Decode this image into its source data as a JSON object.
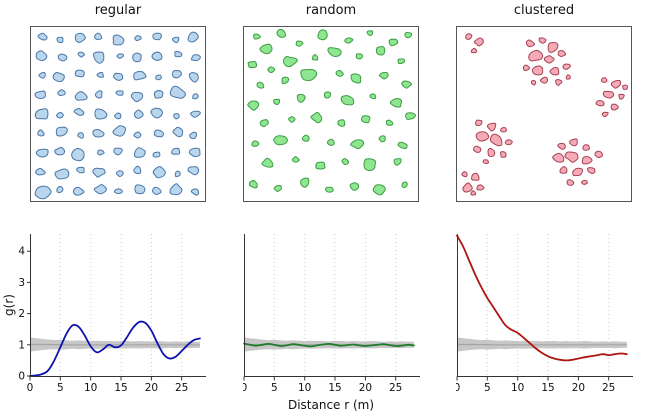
{
  "figure": {
    "titles": [
      "regular",
      "random",
      "clustered"
    ],
    "xlabel": "Distance r (m)",
    "ylabel": "g(r)",
    "colors": {
      "pattern_fill": [
        "#b9d6ec",
        "#8fe690",
        "#f5abb6"
      ],
      "pattern_stroke": [
        "#4a76a8",
        "#3b9c44",
        "#a64254"
      ],
      "line": [
        "#0b12ad",
        "#1e7d29",
        "#ad1412"
      ],
      "envelope_fill": "#c7c7c7",
      "envelope_line": "#a5a5a5",
      "grid": "#cccccc",
      "axis": "#333333",
      "panel_border": "#555555"
    }
  },
  "chart_data": [
    {
      "type": "scatter",
      "panel": "regular",
      "marker": "blob",
      "points": [
        [
          0.07,
          0.06,
          4
        ],
        [
          0.17,
          0.08,
          3
        ],
        [
          0.28,
          0.07,
          5
        ],
        [
          0.39,
          0.06,
          3.5
        ],
        [
          0.5,
          0.08,
          5.5
        ],
        [
          0.61,
          0.07,
          3
        ],
        [
          0.72,
          0.06,
          4
        ],
        [
          0.83,
          0.08,
          3
        ],
        [
          0.93,
          0.06,
          6
        ],
        [
          0.06,
          0.17,
          5
        ],
        [
          0.18,
          0.18,
          4
        ],
        [
          0.29,
          0.16,
          3
        ],
        [
          0.39,
          0.18,
          6
        ],
        [
          0.51,
          0.17,
          3
        ],
        [
          0.61,
          0.18,
          4.5
        ],
        [
          0.72,
          0.17,
          5
        ],
        [
          0.84,
          0.16,
          3.5
        ],
        [
          0.94,
          0.18,
          4
        ],
        [
          0.07,
          0.28,
          3
        ],
        [
          0.17,
          0.29,
          5.5
        ],
        [
          0.28,
          0.27,
          4
        ],
        [
          0.4,
          0.28,
          3
        ],
        [
          0.5,
          0.29,
          4
        ],
        [
          0.62,
          0.28,
          6
        ],
        [
          0.73,
          0.29,
          3
        ],
        [
          0.83,
          0.27,
          4.5
        ],
        [
          0.93,
          0.29,
          5
        ],
        [
          0.06,
          0.39,
          4.5
        ],
        [
          0.18,
          0.38,
          3
        ],
        [
          0.29,
          0.4,
          5
        ],
        [
          0.39,
          0.39,
          4
        ],
        [
          0.51,
          0.38,
          3
        ],
        [
          0.61,
          0.4,
          5
        ],
        [
          0.73,
          0.39,
          4
        ],
        [
          0.84,
          0.38,
          6.5
        ],
        [
          0.94,
          0.4,
          3
        ],
        [
          0.07,
          0.5,
          6
        ],
        [
          0.17,
          0.51,
          3.5
        ],
        [
          0.28,
          0.49,
          4
        ],
        [
          0.4,
          0.5,
          5.5
        ],
        [
          0.5,
          0.51,
          3
        ],
        [
          0.62,
          0.5,
          4
        ],
        [
          0.72,
          0.49,
          5.5
        ],
        [
          0.83,
          0.51,
          3
        ],
        [
          0.94,
          0.5,
          4
        ],
        [
          0.06,
          0.61,
          3.5
        ],
        [
          0.18,
          0.6,
          5
        ],
        [
          0.29,
          0.62,
          3
        ],
        [
          0.39,
          0.61,
          4.5
        ],
        [
          0.51,
          0.6,
          6
        ],
        [
          0.61,
          0.62,
          3
        ],
        [
          0.73,
          0.61,
          4
        ],
        [
          0.84,
          0.6,
          5
        ],
        [
          0.93,
          0.62,
          3.5
        ],
        [
          0.07,
          0.72,
          5
        ],
        [
          0.17,
          0.71,
          4
        ],
        [
          0.28,
          0.73,
          6
        ],
        [
          0.4,
          0.72,
          3
        ],
        [
          0.5,
          0.71,
          4.5
        ],
        [
          0.62,
          0.72,
          5
        ],
        [
          0.72,
          0.73,
          3
        ],
        [
          0.83,
          0.71,
          4
        ],
        [
          0.94,
          0.72,
          5.5
        ],
        [
          0.06,
          0.83,
          4
        ],
        [
          0.18,
          0.84,
          6
        ],
        [
          0.29,
          0.82,
          3.5
        ],
        [
          0.39,
          0.83,
          5
        ],
        [
          0.51,
          0.84,
          3
        ],
        [
          0.61,
          0.82,
          4
        ],
        [
          0.73,
          0.83,
          5.5
        ],
        [
          0.84,
          0.84,
          3
        ],
        [
          0.93,
          0.82,
          4.5
        ],
        [
          0.07,
          0.94,
          7
        ],
        [
          0.17,
          0.93,
          3
        ],
        [
          0.28,
          0.94,
          4.5
        ],
        [
          0.4,
          0.93,
          5
        ],
        [
          0.5,
          0.94,
          3.5
        ],
        [
          0.62,
          0.93,
          5
        ],
        [
          0.72,
          0.94,
          4
        ],
        [
          0.83,
          0.93,
          6
        ],
        [
          0.94,
          0.94,
          3.5
        ]
      ]
    },
    {
      "type": "scatter",
      "panel": "random",
      "marker": "blob",
      "points": [
        [
          0.08,
          0.06,
          3
        ],
        [
          0.22,
          0.04,
          4
        ],
        [
          0.13,
          0.13,
          6
        ],
        [
          0.32,
          0.1,
          3
        ],
        [
          0.45,
          0.05,
          5
        ],
        [
          0.6,
          0.08,
          3.5
        ],
        [
          0.72,
          0.04,
          3
        ],
        [
          0.85,
          0.09,
          4
        ],
        [
          0.94,
          0.05,
          3
        ],
        [
          0.05,
          0.22,
          4
        ],
        [
          0.16,
          0.25,
          3
        ],
        [
          0.27,
          0.2,
          5.5
        ],
        [
          0.41,
          0.18,
          3
        ],
        [
          0.52,
          0.15,
          6
        ],
        [
          0.66,
          0.17,
          3
        ],
        [
          0.78,
          0.14,
          4.5
        ],
        [
          0.9,
          0.2,
          3
        ],
        [
          0.1,
          0.34,
          3.5
        ],
        [
          0.24,
          0.31,
          4
        ],
        [
          0.37,
          0.28,
          7
        ],
        [
          0.55,
          0.27,
          3
        ],
        [
          0.64,
          0.3,
          5
        ],
        [
          0.8,
          0.28,
          3.5
        ],
        [
          0.93,
          0.33,
          4
        ],
        [
          0.06,
          0.45,
          5
        ],
        [
          0.19,
          0.43,
          3
        ],
        [
          0.33,
          0.41,
          4
        ],
        [
          0.48,
          0.39,
          3.5
        ],
        [
          0.59,
          0.42,
          6.5
        ],
        [
          0.74,
          0.4,
          3
        ],
        [
          0.87,
          0.44,
          5
        ],
        [
          0.12,
          0.55,
          4
        ],
        [
          0.28,
          0.53,
          3
        ],
        [
          0.42,
          0.52,
          5
        ],
        [
          0.56,
          0.55,
          3.5
        ],
        [
          0.7,
          0.53,
          4
        ],
        [
          0.83,
          0.55,
          3
        ],
        [
          0.95,
          0.51,
          4.5
        ],
        [
          0.07,
          0.67,
          3
        ],
        [
          0.21,
          0.65,
          6
        ],
        [
          0.36,
          0.64,
          3.5
        ],
        [
          0.5,
          0.66,
          4
        ],
        [
          0.65,
          0.67,
          5.5
        ],
        [
          0.79,
          0.64,
          3
        ],
        [
          0.91,
          0.68,
          4
        ],
        [
          0.14,
          0.78,
          5
        ],
        [
          0.3,
          0.76,
          3
        ],
        [
          0.44,
          0.79,
          4.5
        ],
        [
          0.58,
          0.77,
          3
        ],
        [
          0.72,
          0.79,
          6
        ],
        [
          0.88,
          0.77,
          3.5
        ],
        [
          0.06,
          0.9,
          4
        ],
        [
          0.2,
          0.92,
          3.5
        ],
        [
          0.35,
          0.89,
          5
        ],
        [
          0.49,
          0.93,
          3
        ],
        [
          0.63,
          0.91,
          4
        ],
        [
          0.77,
          0.93,
          5.5
        ],
        [
          0.92,
          0.9,
          3
        ]
      ]
    },
    {
      "type": "scatter",
      "panel": "clustered",
      "marker": "blob",
      "points": [
        [
          0.07,
          0.06,
          3
        ],
        [
          0.13,
          0.09,
          4
        ],
        [
          0.1,
          0.14,
          2.5
        ],
        [
          0.42,
          0.1,
          4
        ],
        [
          0.49,
          0.08,
          3
        ],
        [
          0.55,
          0.12,
          5
        ],
        [
          0.45,
          0.17,
          6
        ],
        [
          0.53,
          0.19,
          4
        ],
        [
          0.6,
          0.16,
          3.5
        ],
        [
          0.4,
          0.24,
          3
        ],
        [
          0.47,
          0.25,
          5
        ],
        [
          0.56,
          0.26,
          4.5
        ],
        [
          0.63,
          0.23,
          3
        ],
        [
          0.5,
          0.31,
          3.5
        ],
        [
          0.58,
          0.32,
          3
        ],
        [
          0.44,
          0.32,
          2.5
        ],
        [
          0.64,
          0.29,
          2.5
        ],
        [
          0.84,
          0.31,
          3
        ],
        [
          0.91,
          0.33,
          4.5
        ],
        [
          0.87,
          0.39,
          5
        ],
        [
          0.94,
          0.4,
          3
        ],
        [
          0.82,
          0.44,
          3.5
        ],
        [
          0.9,
          0.46,
          4
        ],
        [
          0.96,
          0.35,
          2.5
        ],
        [
          0.85,
          0.5,
          2.5
        ],
        [
          0.13,
          0.55,
          3
        ],
        [
          0.2,
          0.57,
          4.5
        ],
        [
          0.27,
          0.59,
          3
        ],
        [
          0.15,
          0.63,
          5
        ],
        [
          0.23,
          0.65,
          6
        ],
        [
          0.3,
          0.66,
          3
        ],
        [
          0.12,
          0.7,
          3.5
        ],
        [
          0.2,
          0.72,
          4
        ],
        [
          0.27,
          0.73,
          3
        ],
        [
          0.17,
          0.77,
          2.5
        ],
        [
          0.6,
          0.68,
          3.5
        ],
        [
          0.67,
          0.66,
          4
        ],
        [
          0.74,
          0.69,
          3
        ],
        [
          0.58,
          0.75,
          5
        ],
        [
          0.66,
          0.74,
          6
        ],
        [
          0.74,
          0.76,
          4.5
        ],
        [
          0.81,
          0.73,
          3
        ],
        [
          0.61,
          0.82,
          4
        ],
        [
          0.69,
          0.83,
          5
        ],
        [
          0.77,
          0.82,
          3.5
        ],
        [
          0.65,
          0.89,
          3
        ],
        [
          0.73,
          0.89,
          2.5
        ],
        [
          0.05,
          0.84,
          3
        ],
        [
          0.11,
          0.86,
          4
        ],
        [
          0.07,
          0.92,
          5
        ],
        [
          0.14,
          0.92,
          3
        ],
        [
          0.1,
          0.95,
          2.5
        ]
      ]
    },
    {
      "type": "line",
      "panel": "regular",
      "xlabel": "Distance r (m)",
      "ylabel": "g(r)",
      "xlim": [
        0,
        29
      ],
      "ylim": [
        0,
        4.55
      ],
      "xticks": [
        0,
        5,
        10,
        15,
        20,
        25
      ],
      "yticks": [
        0,
        1,
        2,
        3,
        4
      ],
      "x": [
        0,
        1,
        2,
        3,
        4,
        5,
        6,
        7,
        8,
        9,
        10,
        11,
        12,
        13,
        14,
        15,
        16,
        17,
        18,
        19,
        20,
        21,
        22,
        23,
        24,
        25,
        26,
        27,
        28
      ],
      "g": [
        0.0,
        0.02,
        0.06,
        0.18,
        0.5,
        0.92,
        1.35,
        1.62,
        1.58,
        1.3,
        0.95,
        0.76,
        0.85,
        1.0,
        0.92,
        0.98,
        1.25,
        1.55,
        1.73,
        1.7,
        1.45,
        1.05,
        0.7,
        0.56,
        0.62,
        0.8,
        1.0,
        1.15,
        1.2
      ],
      "env_low": [
        0.78,
        0.81,
        0.83,
        0.85,
        0.86,
        0.85,
        0.86,
        0.87,
        0.86,
        0.87,
        0.88,
        0.87,
        0.88,
        0.88,
        0.89,
        0.88,
        0.88,
        0.89,
        0.88,
        0.89,
        0.89,
        0.88,
        0.89,
        0.9,
        0.89,
        0.9,
        0.89,
        0.9,
        0.9
      ],
      "env_high": [
        1.24,
        1.21,
        1.19,
        1.17,
        1.15,
        1.16,
        1.14,
        1.13,
        1.14,
        1.13,
        1.12,
        1.13,
        1.12,
        1.12,
        1.11,
        1.12,
        1.12,
        1.11,
        1.12,
        1.11,
        1.11,
        1.12,
        1.11,
        1.1,
        1.11,
        1.1,
        1.11,
        1.1,
        1.1
      ]
    },
    {
      "type": "line",
      "panel": "random",
      "xlim": [
        0,
        29
      ],
      "ylim": [
        0,
        4.55
      ],
      "xticks": [
        0,
        5,
        10,
        15,
        20,
        25
      ],
      "yticks": [
        0,
        1,
        2,
        3,
        4
      ],
      "x": [
        0,
        1,
        2,
        3,
        4,
        5,
        6,
        7,
        8,
        9,
        10,
        11,
        12,
        13,
        14,
        15,
        16,
        17,
        18,
        19,
        20,
        21,
        22,
        23,
        24,
        25,
        26,
        27,
        28
      ],
      "g": [
        1.04,
        1.0,
        0.97,
        1.0,
        1.03,
        1.0,
        0.96,
        0.98,
        1.02,
        1.0,
        0.97,
        0.95,
        0.98,
        1.01,
        1.03,
        1.0,
        0.97,
        0.99,
        1.01,
        0.98,
        0.96,
        0.98,
        1.0,
        1.02,
        0.99,
        0.96,
        0.97,
        1.0,
        0.98
      ],
      "env_low": [
        0.78,
        0.81,
        0.83,
        0.85,
        0.86,
        0.85,
        0.86,
        0.87,
        0.86,
        0.87,
        0.88,
        0.87,
        0.88,
        0.88,
        0.89,
        0.88,
        0.88,
        0.89,
        0.88,
        0.89,
        0.89,
        0.88,
        0.89,
        0.9,
        0.89,
        0.9,
        0.89,
        0.9,
        0.9
      ],
      "env_high": [
        1.24,
        1.21,
        1.19,
        1.17,
        1.15,
        1.16,
        1.14,
        1.13,
        1.14,
        1.13,
        1.12,
        1.13,
        1.12,
        1.12,
        1.11,
        1.12,
        1.12,
        1.11,
        1.12,
        1.11,
        1.11,
        1.12,
        1.11,
        1.1,
        1.11,
        1.1,
        1.11,
        1.1,
        1.1
      ]
    },
    {
      "type": "line",
      "panel": "clustered",
      "xlim": [
        0,
        29
      ],
      "ylim": [
        0,
        4.55
      ],
      "xticks": [
        0,
        5,
        10,
        15,
        20,
        25
      ],
      "yticks": [
        0,
        1,
        2,
        3,
        4
      ],
      "x": [
        0,
        1,
        2,
        3,
        4,
        5,
        6,
        7,
        8,
        9,
        10,
        11,
        12,
        13,
        14,
        15,
        16,
        17,
        18,
        19,
        20,
        21,
        22,
        23,
        24,
        25,
        26,
        27,
        28
      ],
      "g": [
        4.5,
        4.15,
        3.7,
        3.25,
        2.85,
        2.5,
        2.2,
        1.9,
        1.62,
        1.48,
        1.38,
        1.22,
        1.05,
        0.88,
        0.74,
        0.63,
        0.56,
        0.52,
        0.5,
        0.52,
        0.56,
        0.6,
        0.63,
        0.66,
        0.7,
        0.67,
        0.7,
        0.72,
        0.7
      ],
      "env_low": [
        0.78,
        0.81,
        0.83,
        0.85,
        0.86,
        0.85,
        0.86,
        0.87,
        0.86,
        0.87,
        0.88,
        0.87,
        0.88,
        0.88,
        0.89,
        0.88,
        0.88,
        0.89,
        0.88,
        0.89,
        0.89,
        0.88,
        0.89,
        0.9,
        0.89,
        0.9,
        0.89,
        0.9,
        0.9
      ],
      "env_high": [
        1.24,
        1.21,
        1.19,
        1.17,
        1.15,
        1.16,
        1.14,
        1.13,
        1.14,
        1.13,
        1.12,
        1.13,
        1.12,
        1.12,
        1.11,
        1.12,
        1.12,
        1.11,
        1.12,
        1.11,
        1.11,
        1.12,
        1.11,
        1.1,
        1.11,
        1.1,
        1.11,
        1.1,
        1.1
      ]
    }
  ]
}
